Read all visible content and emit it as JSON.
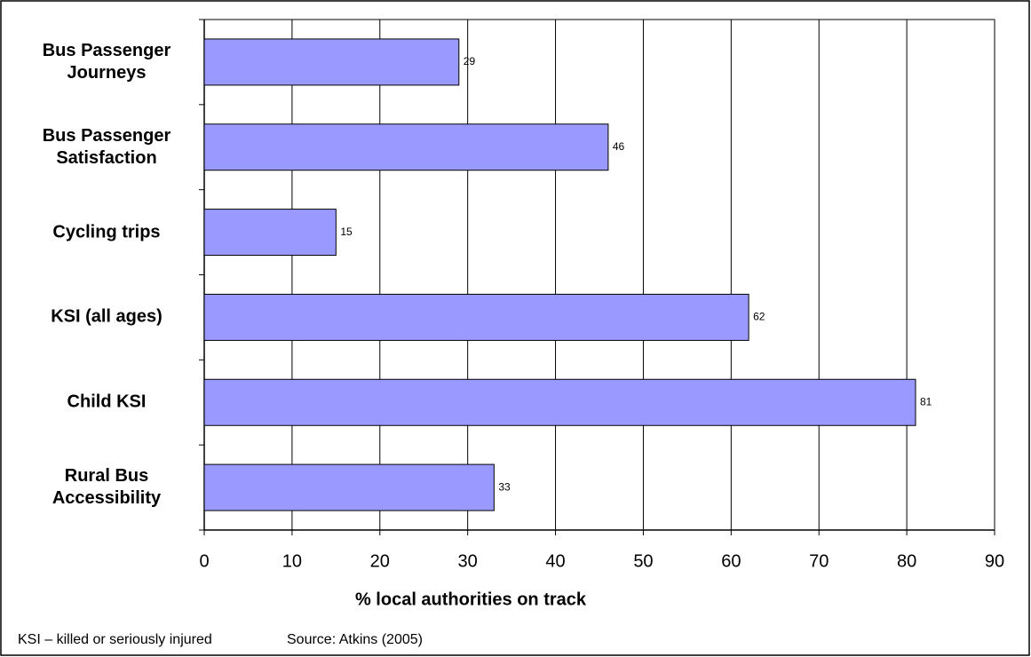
{
  "chart_data": {
    "type": "barh",
    "categories": [
      "Bus Passenger Journeys",
      "Bus Passenger Satisfaction",
      "Cycling trips",
      "KSI (all ages)",
      "Child KSI",
      "Rural Bus Accessibility"
    ],
    "values": [
      29,
      46,
      15,
      62,
      81,
      33
    ],
    "color": "#9999ff",
    "xlim": [
      0,
      90
    ],
    "xticks": [
      0,
      10,
      20,
      30,
      40,
      50,
      60,
      70,
      80,
      90
    ],
    "x_label": "% local authorities on track",
    "grid": true,
    "annotations": [
      "KSI – killed or seriously injured",
      "Source: Atkins (2005)"
    ]
  }
}
